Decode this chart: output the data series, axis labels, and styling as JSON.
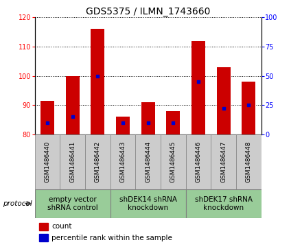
{
  "title": "GDS5375 / ILMN_1743660",
  "samples": [
    "GSM1486440",
    "GSM1486441",
    "GSM1486442",
    "GSM1486443",
    "GSM1486444",
    "GSM1486445",
    "GSM1486446",
    "GSM1486447",
    "GSM1486448"
  ],
  "counts": [
    91.5,
    100.0,
    116.0,
    86.0,
    91.0,
    88.0,
    112.0,
    103.0,
    98.0
  ],
  "percentiles": [
    10,
    15,
    50,
    10,
    10,
    10,
    45,
    22,
    25
  ],
  "ylim_left": [
    80,
    120
  ],
  "ylim_right": [
    0,
    100
  ],
  "yticks_left": [
    80,
    90,
    100,
    110,
    120
  ],
  "yticks_right": [
    0,
    25,
    50,
    75,
    100
  ],
  "bar_color": "#cc0000",
  "dot_color": "#0000cc",
  "bar_bottom": 80,
  "groups": [
    {
      "label": "empty vector\nshRNA control",
      "start": 0,
      "end": 3,
      "color": "#99cc99"
    },
    {
      "label": "shDEK14 shRNA\nknockdown",
      "start": 3,
      "end": 6,
      "color": "#99cc99"
    },
    {
      "label": "shDEK17 shRNA\nknockdown",
      "start": 6,
      "end": 9,
      "color": "#99cc99"
    }
  ],
  "sample_box_color": "#cccccc",
  "bar_width": 0.55,
  "title_fontsize": 10,
  "tick_fontsize": 7,
  "sample_fontsize": 6.5,
  "group_label_fontsize": 7.5,
  "legend_fontsize": 7.5
}
